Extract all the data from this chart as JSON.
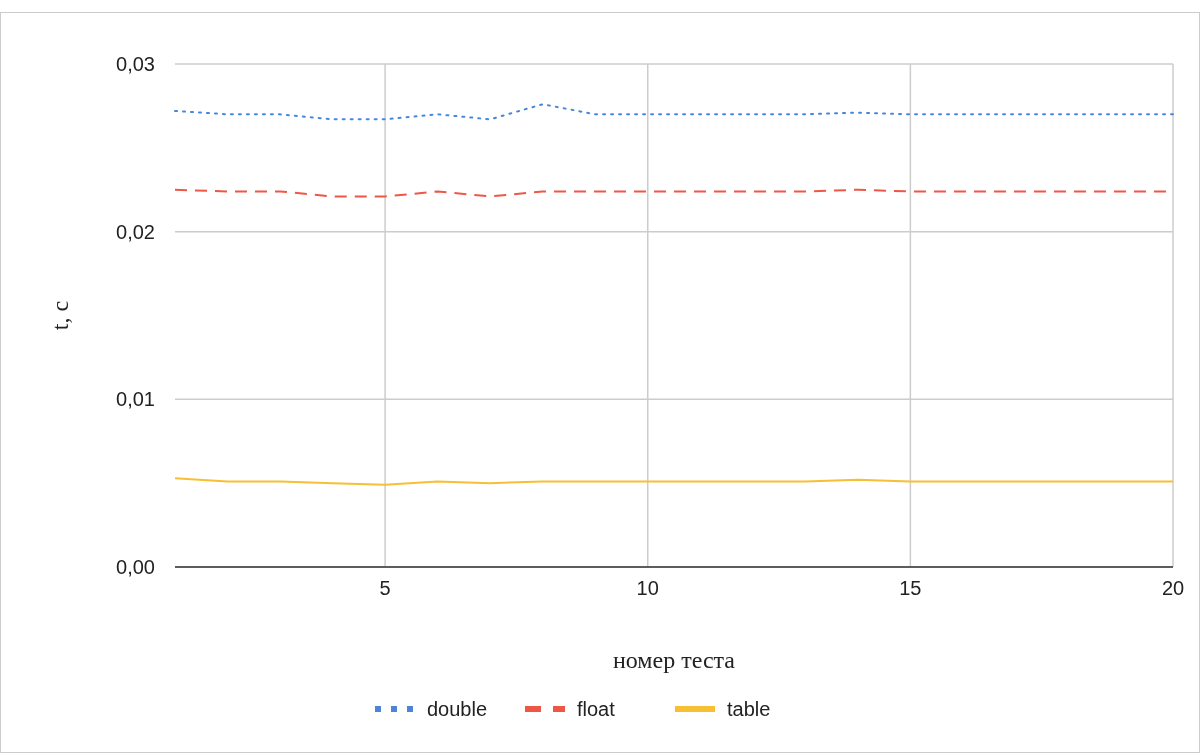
{
  "chart_data": {
    "type": "line",
    "xlabel": "номер теста",
    "ylabel": "t, c",
    "x": [
      1,
      2,
      3,
      4,
      5,
      6,
      7,
      8,
      9,
      10,
      11,
      12,
      13,
      14,
      15,
      16,
      17,
      18,
      19,
      20
    ],
    "series": [
      {
        "name": "double",
        "color": "#4a86d8",
        "line_style": "dotted",
        "values": [
          0.0272,
          0.027,
          0.027,
          0.0267,
          0.0267,
          0.027,
          0.0267,
          0.0276,
          0.027,
          0.027,
          0.027,
          0.027,
          0.027,
          0.0271,
          0.027,
          0.027,
          0.027,
          0.027,
          0.027,
          0.027
        ]
      },
      {
        "name": "float",
        "color": "#ee5746",
        "line_style": "dashed",
        "values": [
          0.0225,
          0.0224,
          0.0224,
          0.0221,
          0.0221,
          0.0224,
          0.0221,
          0.0224,
          0.0224,
          0.0224,
          0.0224,
          0.0224,
          0.0224,
          0.0225,
          0.0224,
          0.0224,
          0.0224,
          0.0224,
          0.0224,
          0.0224
        ]
      },
      {
        "name": "table",
        "color": "#f7bf33",
        "line_style": "solid",
        "values": [
          0.0053,
          0.0051,
          0.0051,
          0.005,
          0.0049,
          0.0051,
          0.005,
          0.0051,
          0.0051,
          0.0051,
          0.0051,
          0.0051,
          0.0051,
          0.0052,
          0.0051,
          0.0051,
          0.0051,
          0.0051,
          0.0051,
          0.0051
        ]
      }
    ],
    "xlim": [
      1,
      20
    ],
    "xticks": [
      5,
      10,
      15,
      20
    ],
    "ylim": [
      0,
      0.03
    ],
    "yticks": [
      {
        "value": 0,
        "label": "0,00"
      },
      {
        "value": 0.01,
        "label": "0,01"
      },
      {
        "value": 0.02,
        "label": "0,02"
      },
      {
        "value": 0.03,
        "label": "0,03"
      }
    ],
    "grid": true,
    "legend": "bottom",
    "marker": "none"
  }
}
